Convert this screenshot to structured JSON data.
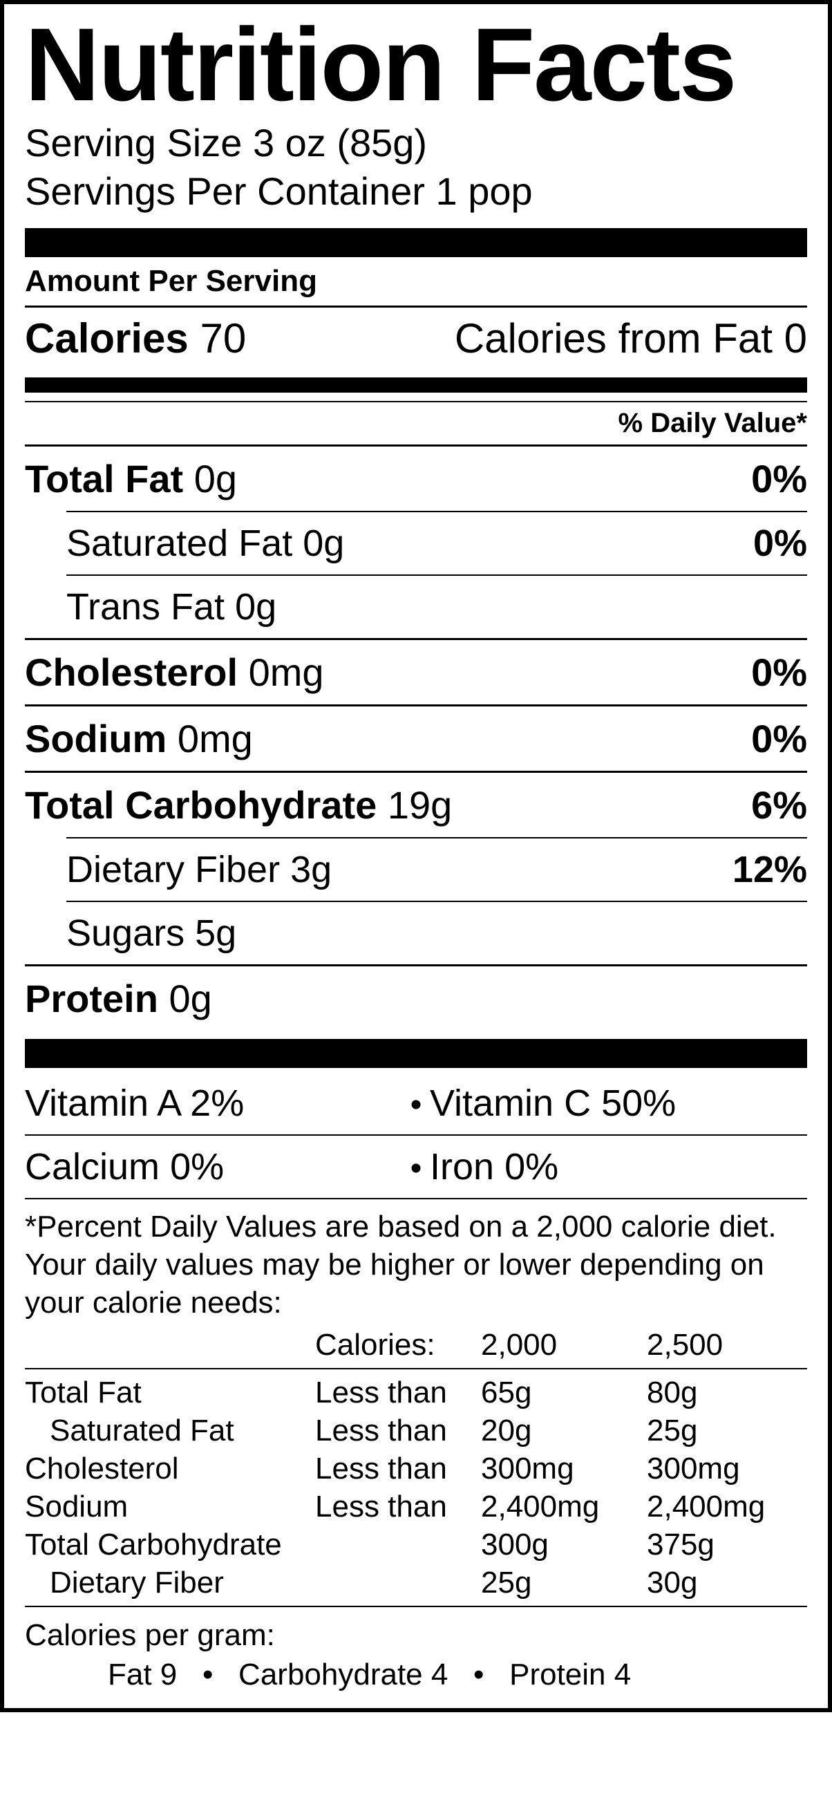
{
  "title": "Nutrition Facts",
  "serving": {
    "size_label": "Serving Size",
    "size_value": "3 oz (85g)",
    "per_container_label": "Servings Per Container",
    "per_container_value": "1 pop"
  },
  "amount_per_serving_label": "Amount Per Serving",
  "calories": {
    "label": "Calories",
    "value": "70",
    "from_fat_label": "Calories from Fat",
    "from_fat_value": "0"
  },
  "dv_header": "% Daily Value*",
  "nutrients": {
    "total_fat": {
      "label": "Total Fat",
      "amount": "0g",
      "dv": "0%"
    },
    "sat_fat": {
      "label": "Saturated Fat",
      "amount": "0g",
      "dv": "0%"
    },
    "trans_fat": {
      "label": "Trans Fat",
      "amount": "0g",
      "dv": ""
    },
    "cholesterol": {
      "label": "Cholesterol",
      "amount": "0mg",
      "dv": "0%"
    },
    "sodium": {
      "label": "Sodium",
      "amount": "0mg",
      "dv": "0%"
    },
    "carb": {
      "label": "Total Carbohydrate",
      "amount": "19g",
      "dv": "6%"
    },
    "fiber": {
      "label": "Dietary Fiber",
      "amount": "3g",
      "dv": "12%"
    },
    "sugars": {
      "label": "Sugars",
      "amount": "5g",
      "dv": ""
    },
    "protein": {
      "label": "Protein",
      "amount": "0g",
      "dv": ""
    }
  },
  "vitamins": {
    "a": {
      "label": "Vitamin A",
      "value": "2%"
    },
    "c": {
      "label": "Vitamin C",
      "value": "50%"
    },
    "ca": {
      "label": "Calcium",
      "value": "0%"
    },
    "fe": {
      "label": "Iron",
      "value": "0%"
    }
  },
  "footnote_text": "*Percent Daily Values are based on a 2,000 calorie diet. Your daily values may be higher or lower depending on your calorie needs:",
  "footnote_table": {
    "header": {
      "c2": "Calories:",
      "c3": "2,000",
      "c4": "2,500"
    },
    "rows": [
      {
        "c1": "Total Fat",
        "indent": false,
        "c2": "Less than",
        "c3": "65g",
        "c4": "80g"
      },
      {
        "c1": "Saturated Fat",
        "indent": true,
        "c2": "Less than",
        "c3": "20g",
        "c4": "25g"
      },
      {
        "c1": "Cholesterol",
        "indent": false,
        "c2": "Less than",
        "c3": "300mg",
        "c4": "300mg"
      },
      {
        "c1": "Sodium",
        "indent": false,
        "c2": "Less than",
        "c3": "2,400mg",
        "c4": "2,400mg"
      },
      {
        "c1": "Total Carbohydrate",
        "indent": false,
        "c2": "",
        "c3": "300g",
        "c4": "375g"
      },
      {
        "c1": "Dietary Fiber",
        "indent": true,
        "c2": "",
        "c3": "25g",
        "c4": "30g"
      }
    ]
  },
  "cpg": {
    "heading": "Calories per gram:",
    "fat": "Fat 9",
    "carb": "Carbohydrate 4",
    "protein": "Protein 4"
  },
  "style": {
    "border_color": "#000000",
    "bg_color": "#ffffff",
    "text_color": "#000000",
    "title_fontsize": 150,
    "body_fontsize": 56,
    "foot_fontsize": 44
  }
}
